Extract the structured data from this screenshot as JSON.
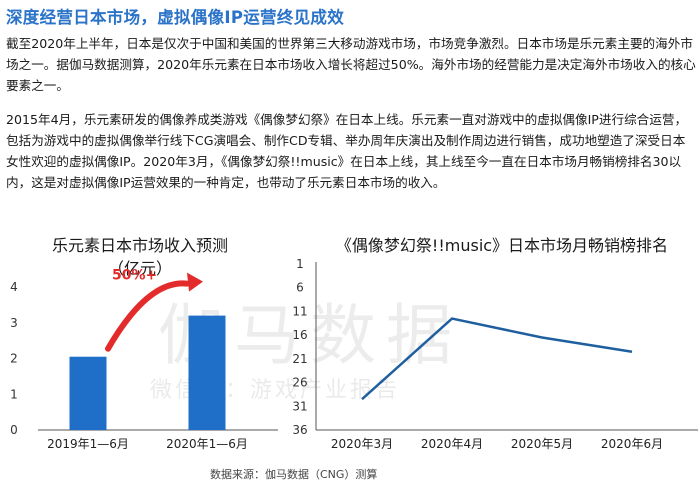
{
  "title": "深度经营日本市场，虚拟偶像IP运营终见成效",
  "paragraphs": [
    "截至2020年上半年，日本是仅次于中国和美国的世界第三大移动游戏市场，市场竞争激烈。日本市场是乐元素主要的海外市场之一。据伽马数据测算，2020年乐元素在日本市场收入增长将超过50%。海外市场的经营能力是决定海外市场收入的核心要素之一。",
    "2015年4月，乐元素研发的偶像养成类游戏《偶像梦幻祭》在日本上线。乐元素一直对游戏中的虚拟偶像IP进行综合运营，包括为游戏中的虚拟偶像举行线下CG演唱会、制作CD专辑、举办周年庆演出及制作周边进行销售，成功地塑造了深受日本女性欢迎的虚拟偶像IP。2020年3月，《偶像梦幻祭!!music》在日本上线，其上线至今一直在日本市场月畅销榜排名30以内，这是对虚拟偶像IP运营效果的一种肯定，也带动了乐元素日本市场的收入。"
  ],
  "left_chart": {
    "title": "乐元素日本市场收入预测",
    "unit": "（亿元）",
    "growth_label": "50%+"
  },
  "right_chart": {
    "title": "《偶像梦幻祭!!music》日本市场月畅销榜排名"
  },
  "watermark": {
    "main": "伽马数据",
    "sub": "微信号：游戏产业报告"
  },
  "source": "数据来源：伽马数据（CNG）测算",
  "colors": {
    "title": "#2a73c8",
    "bar": "#1f6fc9",
    "line": "#1f5f9f",
    "arrow": "#e32b2b",
    "growth": "#e32b2b"
  },
  "chart_data": [
    {
      "type": "bar",
      "title": "乐元素日本市场收入预测",
      "ylabel": "（亿元）",
      "categories": [
        "2019年1—6月",
        "2020年1—6月"
      ],
      "values": [
        2.05,
        3.2
      ],
      "ylim": [
        0,
        4
      ],
      "yticks": [
        "0",
        "1",
        "2",
        "3",
        "4"
      ],
      "annotation": "50%+",
      "grid": false
    },
    {
      "type": "line",
      "title": "《偶像梦幻祭!!music》日本市场月畅销榜排名",
      "categories": [
        "2020年3月",
        "2020年4月",
        "2020年5月",
        "2020年6月"
      ],
      "values": [
        29.5,
        12.5,
        16.5,
        19.5
      ],
      "ylim": [
        1,
        36
      ],
      "y_inverted": true,
      "yticks": [
        "1",
        "6",
        "11",
        "16",
        "21",
        "26",
        "31",
        "36"
      ],
      "grid": false
    }
  ]
}
